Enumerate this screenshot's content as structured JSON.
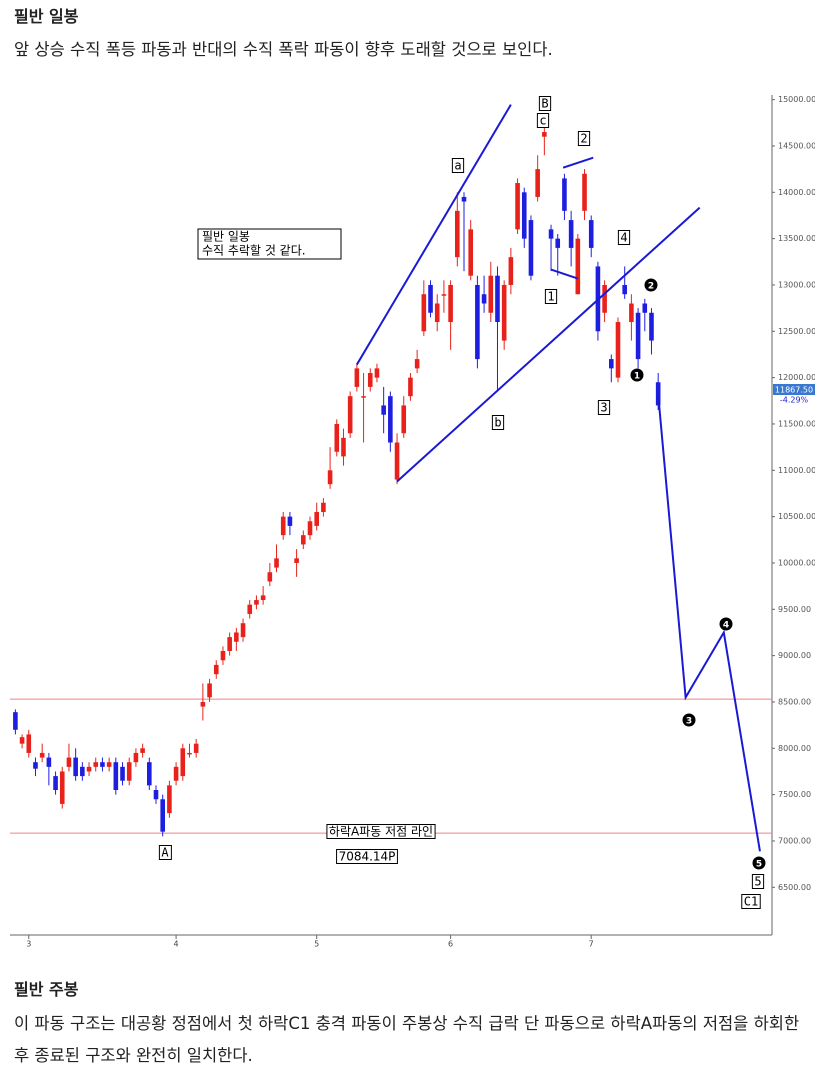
{
  "header": {
    "title": "필반 일봉",
    "text": "앞 상승 수직 폭등 파동과 반대의 수직 폭락 파동이 향후 도래할 것으로 보인다."
  },
  "chart_data": {
    "type": "candlestick",
    "x": [
      0,
      1,
      2,
      3,
      4,
      5,
      6,
      7,
      8,
      9,
      10,
      11,
      12,
      13,
      14,
      15,
      16,
      17,
      18,
      19,
      20,
      21,
      22,
      23,
      24,
      25,
      26,
      27,
      28,
      29,
      30,
      31,
      32,
      33,
      34,
      35,
      36,
      37,
      38,
      39,
      40,
      41,
      42,
      43,
      44,
      45,
      46,
      47,
      48,
      49,
      50,
      51,
      52,
      53,
      54,
      55,
      56,
      57,
      58,
      59,
      60,
      61,
      62,
      63,
      64,
      65,
      66,
      67,
      68,
      69,
      70,
      71,
      72,
      73,
      74,
      75,
      76,
      77,
      78,
      79,
      80,
      81,
      82,
      83,
      84,
      85,
      86,
      87,
      88,
      89,
      90,
      91,
      92,
      93,
      94,
      95,
      96
    ],
    "open": [
      8390,
      8050,
      7950,
      7850,
      7900,
      7900,
      7700,
      7400,
      7800,
      7900,
      7800,
      7750,
      7800,
      7850,
      7800,
      7850,
      7800,
      7650,
      7850,
      7950,
      7850,
      7550,
      7450,
      7300,
      7650,
      7700,
      7950,
      7950,
      8450,
      8550,
      8800,
      8950,
      9050,
      9150,
      9200,
      9450,
      9550,
      9600,
      9800,
      9950,
      10300,
      10500,
      10000,
      10200,
      10300,
      10400,
      10550,
      10850,
      11200,
      11150,
      11400,
      11900,
      11800,
      11900,
      12000,
      11700,
      11800,
      10900,
      11400,
      11800,
      12100,
      12500,
      13000,
      12600,
      12900,
      12600,
      13300,
      13950,
      13100,
      13000,
      12900,
      12700,
      13100,
      12400,
      13000,
      13600,
      14000,
      13700,
      13950,
      14600,
      13600,
      13500,
      14150,
      13700,
      12900,
      13800,
      13700,
      13200,
      12700,
      12200,
      12000,
      13000,
      12600,
      12700,
      12800,
      12700,
      11950
    ],
    "high": [
      8420,
      8150,
      8200,
      7900,
      8050,
      7950,
      7750,
      7800,
      8050,
      8000,
      7850,
      7850,
      7900,
      7900,
      7900,
      7900,
      7850,
      7900,
      8000,
      8050,
      7900,
      7600,
      7500,
      7650,
      7850,
      8050,
      8050,
      8100,
      8700,
      8750,
      8950,
      9100,
      9250,
      9300,
      9400,
      9600,
      9650,
      9750,
      10000,
      10200,
      10550,
      10550,
      10150,
      10350,
      10500,
      10650,
      10700,
      11250,
      11550,
      11450,
      11850,
      12150,
      12050,
      12100,
      12150,
      11900,
      11850,
      11400,
      11800,
      12050,
      12300,
      13050,
      13050,
      12900,
      13050,
      13050,
      14000,
      14000,
      13700,
      13100,
      13100,
      13250,
      13200,
      13050,
      13400,
      14150,
      14050,
      13750,
      14400,
      14700,
      13650,
      13550,
      14200,
      13800,
      13550,
      14250,
      13750,
      13250,
      13050,
      12250,
      12650,
      13200,
      12900,
      12750,
      12850,
      12750,
      12050
    ],
    "low": [
      8150,
      8000,
      7900,
      7700,
      7850,
      7600,
      7500,
      7350,
      7750,
      7650,
      7650,
      7700,
      7750,
      7750,
      7750,
      7500,
      7600,
      7600,
      7800,
      7900,
      7550,
      7400,
      7050,
      7250,
      7600,
      7650,
      7900,
      7900,
      8300,
      8500,
      8750,
      8900,
      9000,
      9050,
      9150,
      9400,
      9500,
      9550,
      9750,
      9900,
      10250,
      10300,
      9850,
      10150,
      10250,
      10350,
      10500,
      10800,
      11150,
      11050,
      11350,
      11850,
      11300,
      11850,
      11950,
      11400,
      11200,
      10850,
      11350,
      11750,
      12050,
      12450,
      12650,
      12500,
      12700,
      12300,
      13200,
      13150,
      13050,
      12100,
      12700,
      12600,
      11850,
      12300,
      12900,
      13550,
      13400,
      13050,
      13900,
      14400,
      13150,
      13100,
      13700,
      13200,
      12900,
      13700,
      13300,
      12400,
      12600,
      11950,
      11950,
      12850,
      12400,
      12100,
      12500,
      12250,
      11650
    ],
    "close": [
      8200,
      8120,
      8150,
      7780,
      7950,
      7800,
      7550,
      7750,
      7900,
      7700,
      7700,
      7800,
      7850,
      7800,
      7850,
      7550,
      7650,
      7850,
      7950,
      8000,
      7600,
      7450,
      7100,
      7600,
      7800,
      8000,
      7950,
      8050,
      8500,
      8700,
      8900,
      9050,
      9200,
      9250,
      9350,
      9550,
      9600,
      9650,
      9900,
      10050,
      10500,
      10400,
      10050,
      10300,
      10450,
      10550,
      10650,
      11000,
      11500,
      11350,
      11800,
      12100,
      11800,
      12050,
      12100,
      11600,
      11300,
      11300,
      11700,
      12000,
      12200,
      12900,
      12700,
      12800,
      12900,
      13000,
      13800,
      13900,
      13600,
      12200,
      12800,
      13100,
      12600,
      13000,
      13300,
      14100,
      13500,
      13100,
      14250,
      14650,
      13500,
      13400,
      13800,
      13400,
      13500,
      14200,
      13400,
      12500,
      13000,
      12100,
      12600,
      12900,
      12800,
      12200,
      12700,
      12400,
      11700
    ],
    "up_color": "#e8221b",
    "down_color": "#1e1ee0",
    "line_color": "#1a1ad6",
    "hline_color": "#f08080",
    "xlim": [
      -2,
      113
    ],
    "ylim": [
      6050,
      15050
    ],
    "xticks": [
      {
        "value": 2,
        "label": "3"
      },
      {
        "value": 24,
        "label": "4"
      },
      {
        "value": 45,
        "label": "5"
      },
      {
        "value": 65,
        "label": "6"
      },
      {
        "value": 86,
        "label": "7"
      }
    ],
    "yticks": [
      {
        "value": 6500,
        "label": "6500.00"
      },
      {
        "value": 7000,
        "label": "7000.00"
      },
      {
        "value": 7500,
        "label": "7500.00"
      },
      {
        "value": 8000,
        "label": "8000.00"
      },
      {
        "value": 8500,
        "label": "8500.00"
      },
      {
        "value": 9000,
        "label": "9000.00"
      },
      {
        "value": 9500,
        "label": "9500.00"
      },
      {
        "value": 10000,
        "label": "10000.00"
      },
      {
        "value": 10500,
        "label": "10500.00"
      },
      {
        "value": 11000,
        "label": "11000.00"
      },
      {
        "value": 11500,
        "label": "11500.00"
      },
      {
        "value": 12000,
        "label": "12000.00"
      },
      {
        "value": 12500,
        "label": "12500.00"
      },
      {
        "value": 13000,
        "label": "13000.00"
      },
      {
        "value": 13500,
        "label": "13500.00"
      },
      {
        "value": 14000,
        "label": "14000.00"
      },
      {
        "value": 14500,
        "label": "14500.00"
      },
      {
        "value": 15000,
        "label": "15000.00"
      }
    ],
    "hlines": [
      8530,
      7084.14
    ],
    "wave_lines": [
      {
        "x": [
          51,
          74
        ],
        "y": [
          12141,
          14946
        ]
      },
      {
        "x": [
          57,
          102.2
        ],
        "y": [
          10879,
          13835
        ]
      },
      {
        "x": [
          81.8,
          86.3
        ],
        "y": [
          14266,
          14374
        ]
      },
      {
        "x": [
          80,
          84
        ],
        "y": [
          13166,
          13069
        ]
      },
      {
        "x": [
          96,
          100.1,
          105.8,
          111.2
        ],
        "y": [
          11818,
          8549,
          9250,
          6888
        ]
      }
    ],
    "wave_labels": [
      "a",
      "B",
      "c",
      "2",
      "4",
      "1",
      "3",
      "b",
      "A",
      "5",
      "C1"
    ],
    "count_labels": [
      "1",
      "2",
      "3",
      "4",
      "5"
    ],
    "note": [
      "필반 일봉",
      "수직 추락할 것 같다."
    ],
    "line_label": "하락A파동 저점 라인",
    "low_label": "7084.14P",
    "price_label": "11867.50",
    "change_label": "-4.29%"
  },
  "section": {
    "title": "필반 주봉",
    "text": "이 파동 구조는 대공황 정점에서 첫 하락C1 충격 파동이 주봉상 수직 급락 단 파동으로 하락A파동의 저점을 하회한 후 종료된 구조와 완전히 일치한다."
  }
}
